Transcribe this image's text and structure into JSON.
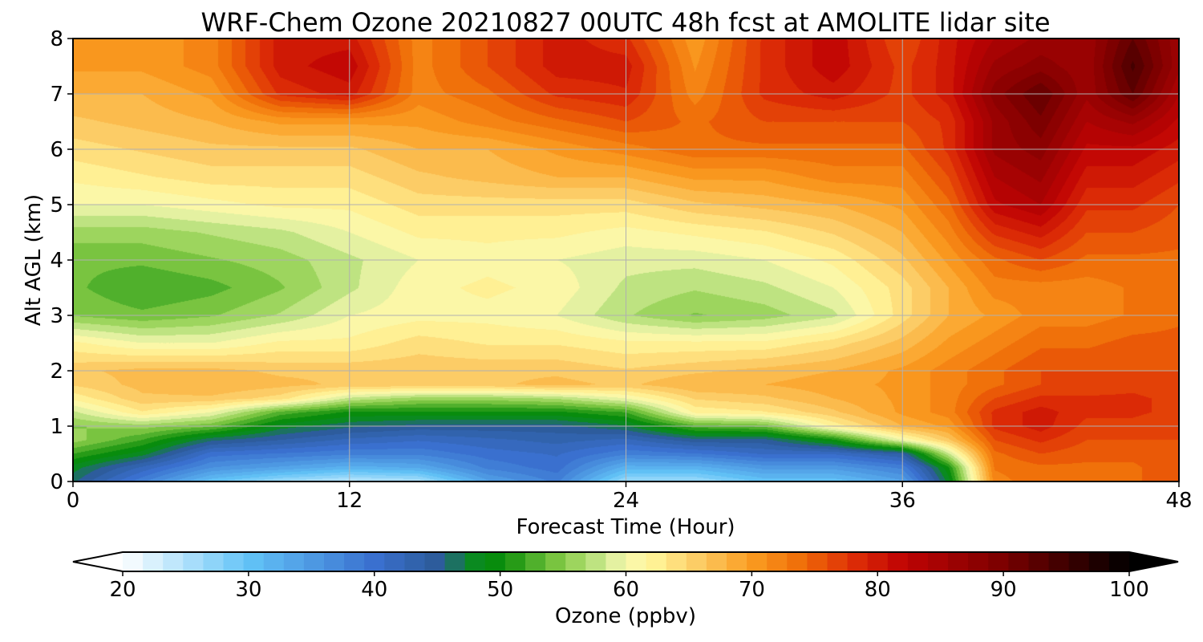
{
  "chart_data": {
    "type": "heatmap",
    "title": "WRF-Chem Ozone  20210827 00UTC 48h fcst at AMOLITE lidar site",
    "xlabel": "Forecast Time (Hour)",
    "ylabel": "Alt AGL (km)",
    "xlim": [
      0,
      48
    ],
    "ylim": [
      0,
      8
    ],
    "xticks": [
      0,
      12,
      24,
      36,
      48
    ],
    "yticks": [
      0,
      1,
      2,
      3,
      4,
      5,
      6,
      7,
      8
    ],
    "grid": true,
    "x": [
      0,
      3,
      6,
      9,
      12,
      15,
      18,
      21,
      24,
      27,
      30,
      33,
      36,
      38,
      40,
      42,
      44,
      46,
      48
    ],
    "y": [
      0,
      0.25,
      0.5,
      0.75,
      1,
      1.25,
      1.5,
      1.75,
      2,
      2.5,
      3,
      3.5,
      4,
      4.5,
      5,
      5.5,
      6,
      6.5,
      7,
      7.5,
      8
    ],
    "z_units": "ppbv",
    "z": [
      [
        46,
        38,
        30,
        26,
        24,
        25,
        34,
        38,
        26,
        26,
        30,
        30,
        34,
        48,
        72,
        74,
        74,
        74,
        76
      ],
      [
        48,
        42,
        36,
        34,
        32,
        33,
        38,
        40,
        32,
        32,
        35,
        35,
        38,
        50,
        73,
        74,
        74,
        74,
        76
      ],
      [
        52,
        48,
        40,
        39,
        38,
        38,
        40,
        41,
        38,
        39,
        41,
        41,
        44,
        58,
        74,
        76,
        75,
        75,
        76
      ],
      [
        56,
        52,
        46,
        44,
        42,
        41,
        42,
        43,
        42,
        45,
        45,
        50,
        60,
        66,
        76,
        78,
        76,
        76,
        76
      ],
      [
        55,
        56,
        54,
        48,
        46,
        45,
        45,
        45,
        47,
        53,
        54,
        62,
        68,
        70,
        78,
        80,
        77,
        77,
        76
      ],
      [
        58,
        63,
        60,
        53,
        50,
        50,
        50,
        50,
        52,
        62,
        63,
        66,
        70,
        72,
        78,
        80,
        78,
        78,
        77
      ],
      [
        62,
        66,
        66,
        64,
        58,
        56,
        56,
        57,
        60,
        65,
        66,
        68,
        70,
        72,
        76,
        78,
        78,
        78,
        77
      ],
      [
        65,
        67,
        68,
        67,
        66,
        66,
        66,
        67,
        66,
        68,
        68,
        69,
        70,
        72,
        74,
        76,
        76,
        77,
        76
      ],
      [
        66,
        67,
        67,
        66,
        66,
        66,
        66,
        66,
        65,
        66,
        67,
        68,
        70,
        72,
        74,
        76,
        76,
        76,
        76
      ],
      [
        62,
        60,
        60,
        62,
        62,
        64,
        63,
        63,
        62,
        62,
        62,
        64,
        67,
        70,
        72,
        74,
        74,
        75,
        75
      ],
      [
        55,
        54,
        55,
        57,
        60,
        61,
        61,
        60,
        57,
        55,
        56,
        58,
        64,
        68,
        70,
        72,
        72,
        73,
        74
      ],
      [
        54,
        52,
        53,
        55,
        58,
        61,
        62,
        61,
        58,
        57,
        58,
        60,
        64,
        68,
        72,
        72,
        72,
        73,
        74
      ],
      [
        54,
        54,
        55,
        56,
        58,
        60,
        61,
        60,
        59,
        59,
        60,
        62,
        66,
        70,
        74,
        76,
        74,
        74,
        74
      ],
      [
        56,
        56,
        57,
        58,
        60,
        62,
        62,
        62,
        61,
        62,
        63,
        65,
        68,
        72,
        78,
        80,
        76,
        76,
        75
      ],
      [
        60,
        60,
        61,
        62,
        62,
        64,
        64,
        64,
        64,
        66,
        67,
        68,
        70,
        74,
        82,
        84,
        78,
        78,
        76
      ],
      [
        62,
        63,
        64,
        64,
        64,
        66,
        67,
        68,
        68,
        70,
        70,
        72,
        72,
        76,
        84,
        86,
        80,
        80,
        78
      ],
      [
        64,
        65,
        66,
        66,
        66,
        68,
        68,
        70,
        72,
        74,
        74,
        74,
        74,
        78,
        86,
        88,
        82,
        82,
        80
      ],
      [
        66,
        67,
        68,
        70,
        70,
        70,
        72,
        74,
        76,
        74,
        76,
        76,
        76,
        78,
        86,
        90,
        84,
        86,
        82
      ],
      [
        68,
        68,
        70,
        78,
        80,
        72,
        74,
        78,
        79,
        72,
        78,
        80,
        77,
        80,
        88,
        92,
        86,
        92,
        84
      ],
      [
        70,
        70,
        72,
        80,
        82,
        72,
        76,
        80,
        80,
        71,
        78,
        82,
        77,
        80,
        86,
        88,
        86,
        94,
        86
      ],
      [
        70,
        70,
        72,
        80,
        80,
        72,
        76,
        80,
        78,
        70,
        78,
        82,
        76,
        80,
        84,
        86,
        86,
        92,
        86
      ]
    ],
    "colorbar": {
      "label": "Ozone  (ppbv)",
      "min": 20,
      "max": 100,
      "ticks": [
        20,
        30,
        40,
        50,
        60,
        70,
        80,
        90,
        100
      ],
      "extend": "both",
      "stops": [
        {
          "v": 20,
          "c": "#ffffff"
        },
        {
          "v": 30,
          "c": "#62c3f7"
        },
        {
          "v": 40,
          "c": "#3a70cf"
        },
        {
          "v": 45,
          "c": "#2c5b9a"
        },
        {
          "v": 48,
          "c": "#0a8a20"
        },
        {
          "v": 50,
          "c": "#088c08"
        },
        {
          "v": 55,
          "c": "#88cc48"
        },
        {
          "v": 58,
          "c": "#c6e68a"
        },
        {
          "v": 60,
          "c": "#f8f8b0"
        },
        {
          "v": 62,
          "c": "#fff59a"
        },
        {
          "v": 66,
          "c": "#fcc860"
        },
        {
          "v": 70,
          "c": "#fa9c20"
        },
        {
          "v": 74,
          "c": "#ef6c08"
        },
        {
          "v": 78,
          "c": "#de2e06"
        },
        {
          "v": 82,
          "c": "#c00404"
        },
        {
          "v": 90,
          "c": "#7a0000"
        },
        {
          "v": 100,
          "c": "#000000"
        }
      ]
    }
  }
}
